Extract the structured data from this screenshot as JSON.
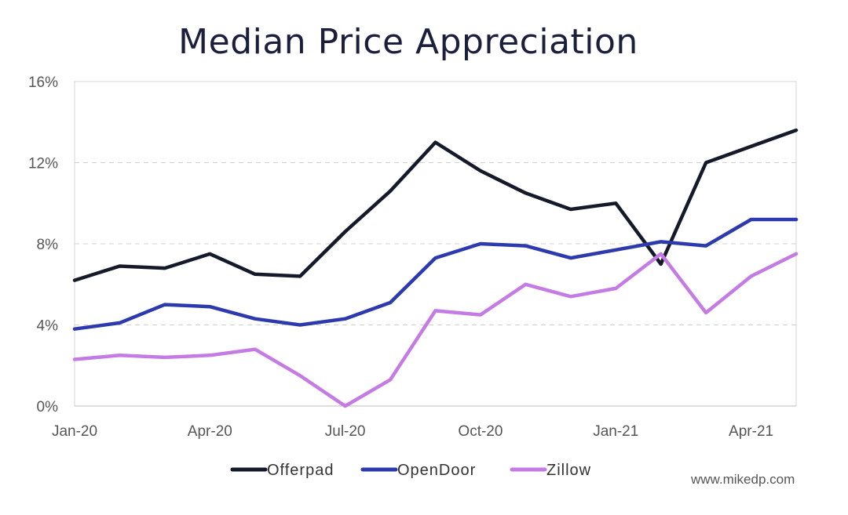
{
  "chart_data": {
    "type": "line",
    "title": "Median Price Appreciation",
    "xlabel": "",
    "ylabel": "",
    "x": [
      "Jan-20",
      "Feb-20",
      "Mar-20",
      "Apr-20",
      "May-20",
      "Jun-20",
      "Jul-20",
      "Aug-20",
      "Sep-20",
      "Oct-20",
      "Nov-20",
      "Dec-20",
      "Jan-21",
      "Feb-21",
      "Mar-21",
      "Apr-21",
      "May-21"
    ],
    "x_tick_labels": [
      "Jan-20",
      "Apr-20",
      "Jul-20",
      "Oct-20",
      "Jan-21",
      "Apr-21"
    ],
    "x_tick_indices": [
      0,
      3,
      6,
      9,
      12,
      15
    ],
    "y_ticks": [
      0,
      4,
      8,
      12,
      16
    ],
    "y_tick_labels": [
      "0%",
      "4%",
      "8%",
      "12%",
      "16%"
    ],
    "ylim": [
      0,
      16
    ],
    "grid": "horizontal dashed",
    "legend_position": "bottom",
    "series": [
      {
        "name": "Offerpad",
        "color": "#151a2b",
        "values": [
          6.2,
          6.9,
          6.8,
          7.5,
          6.5,
          6.4,
          8.6,
          10.6,
          13.0,
          11.6,
          10.5,
          9.7,
          10.0,
          7.0,
          12.0,
          12.8,
          13.6
        ]
      },
      {
        "name": "OpenDoor",
        "color": "#2d3aad",
        "values": [
          3.8,
          4.1,
          5.0,
          4.9,
          4.3,
          4.0,
          4.3,
          5.1,
          7.3,
          8.0,
          7.9,
          7.3,
          7.7,
          8.1,
          7.9,
          9.2,
          9.2
        ]
      },
      {
        "name": "Zillow",
        "color": "#c47be3",
        "values": [
          2.3,
          2.5,
          2.4,
          2.5,
          2.8,
          1.5,
          0.0,
          1.3,
          4.7,
          4.5,
          6.0,
          5.4,
          5.8,
          7.5,
          4.6,
          6.4,
          7.5
        ]
      }
    ],
    "watermark": "www.mikedp.com"
  }
}
